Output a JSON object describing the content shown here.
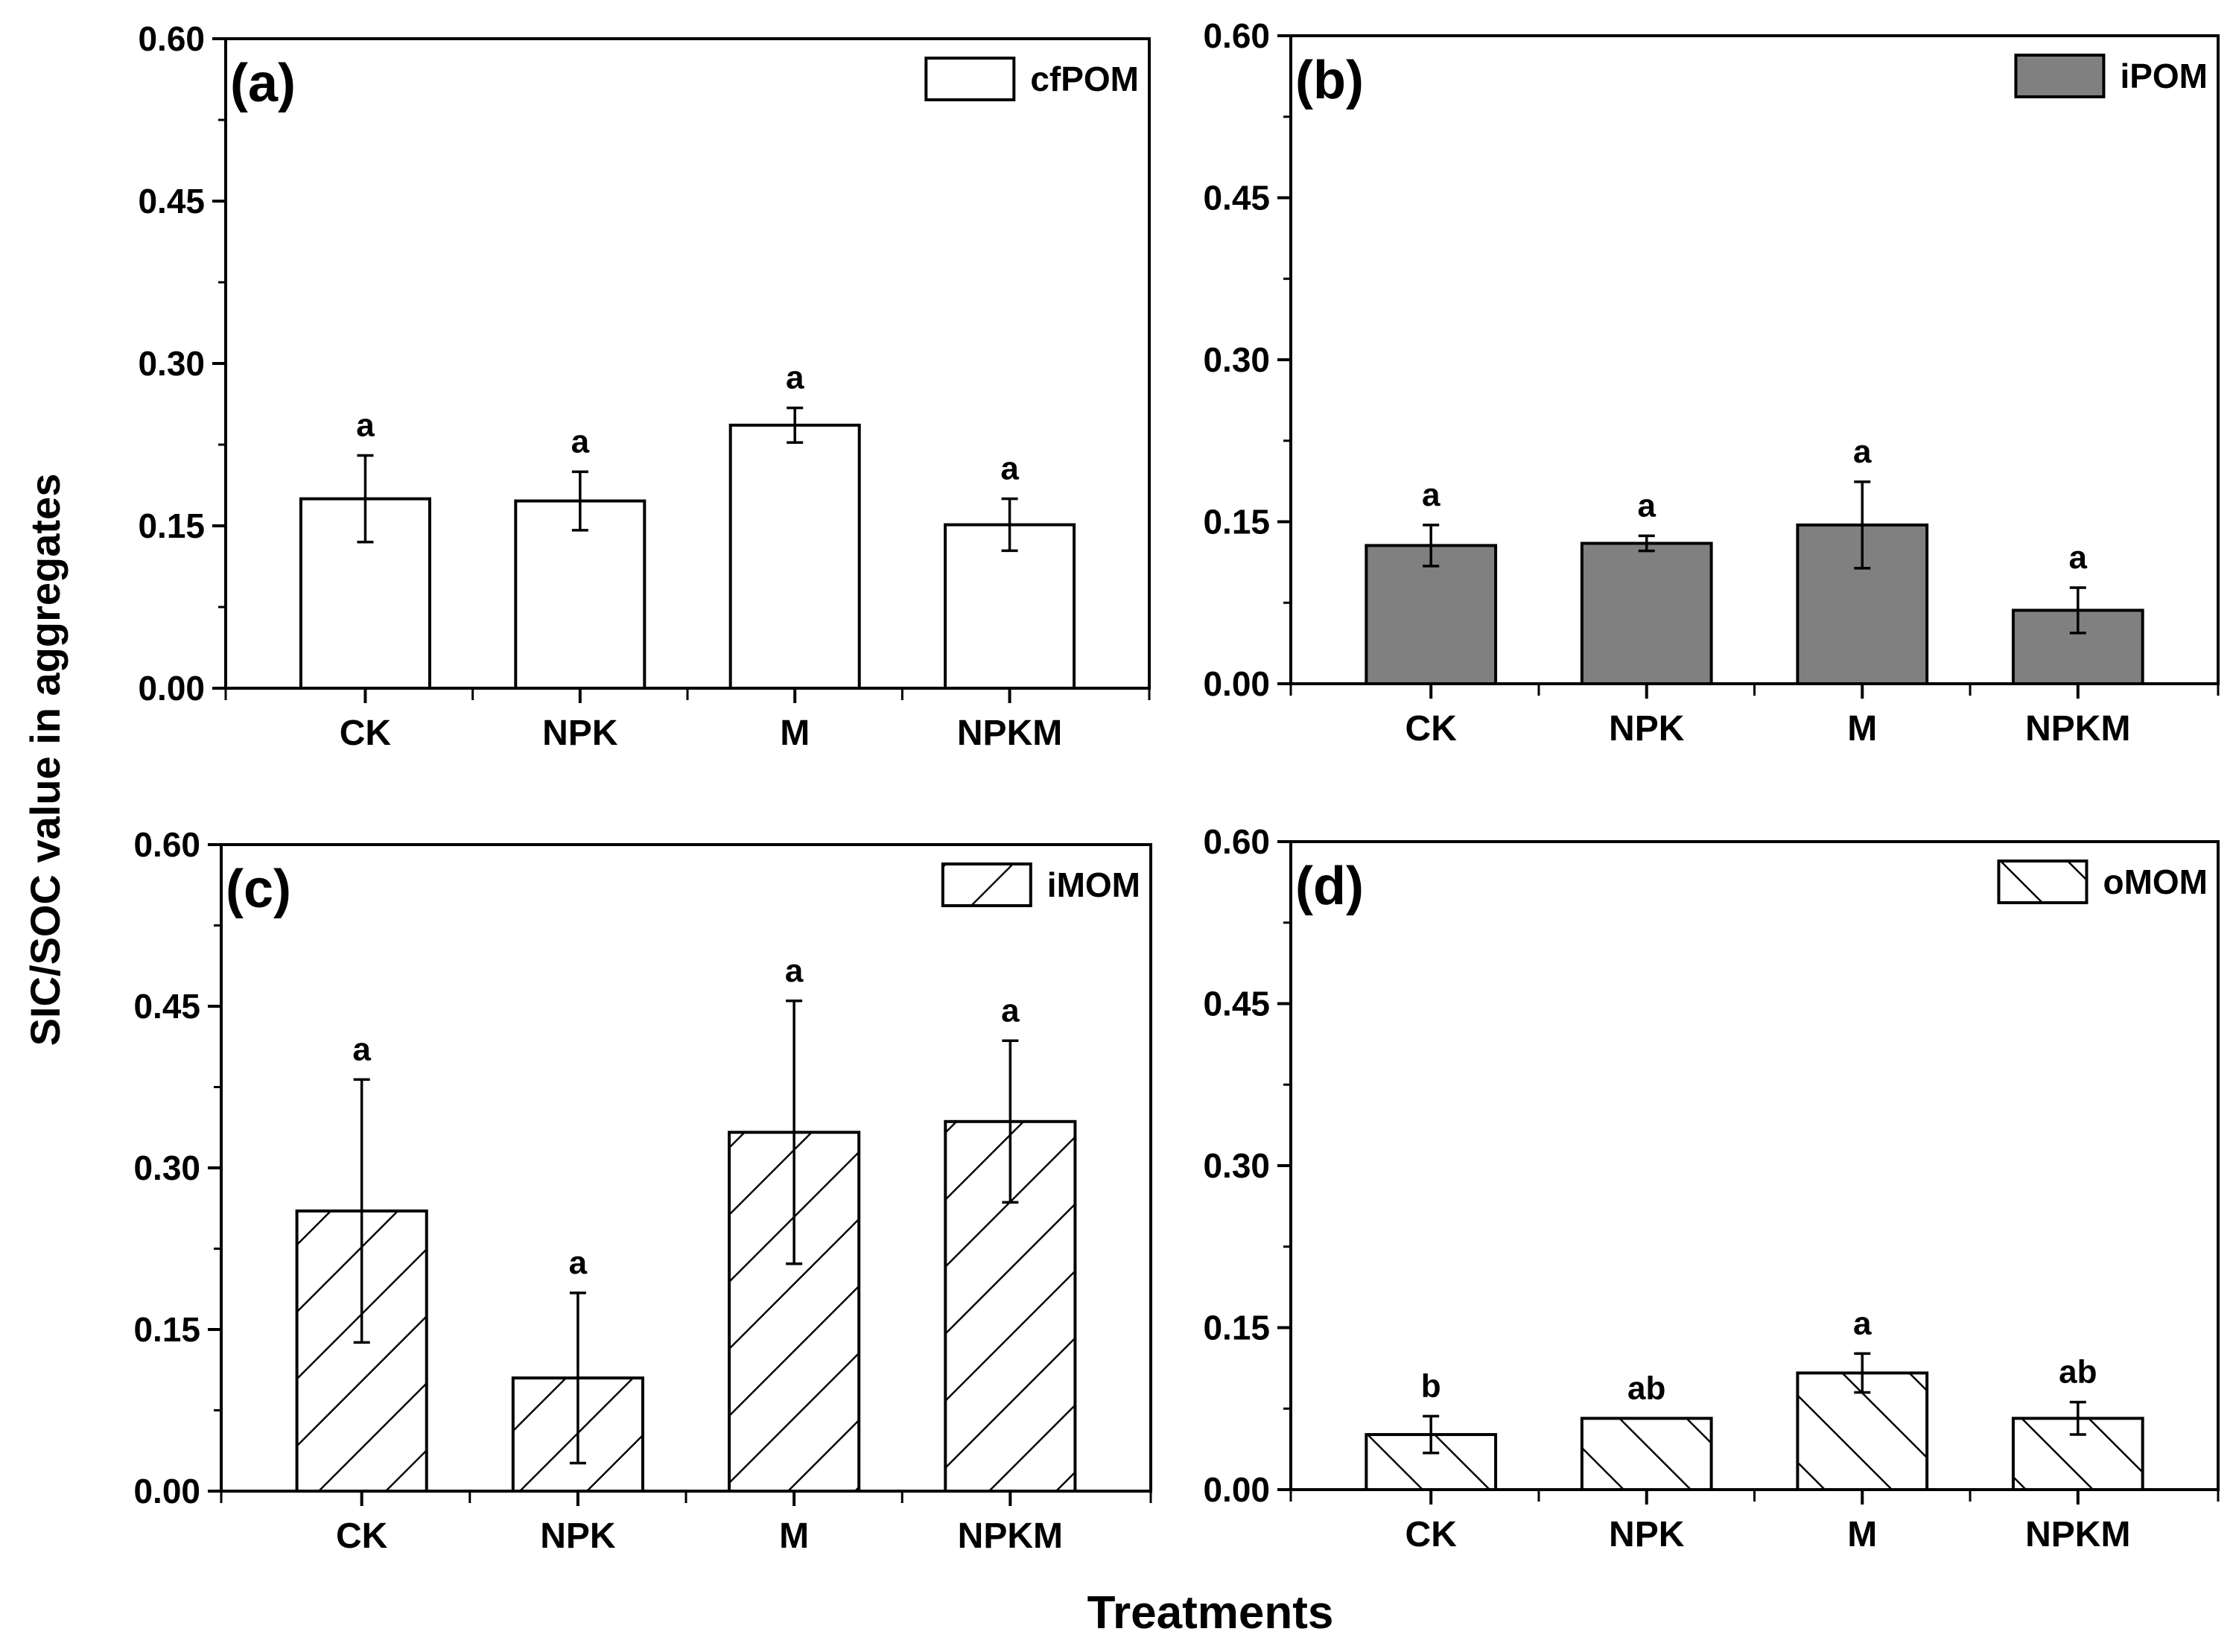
{
  "chart_data": {
    "type": "bar",
    "ylabel": "SIC/SOC value in aggregates",
    "xlabel": "Treatments",
    "ylim": [
      0,
      0.6
    ],
    "yticks": [
      "0.00",
      "0.15",
      "0.30",
      "0.45",
      "0.60"
    ],
    "categories": [
      "CK",
      "NPK",
      "M",
      "NPKM"
    ],
    "colors": {
      "axis": "#000000",
      "ipom_fill": "#808080",
      "white_fill": "#ffffff"
    },
    "panels": [
      {
        "panel_label": "(a)",
        "legend": "cfPOM",
        "fill": "white",
        "values": [
          0.175,
          0.173,
          0.243,
          0.151
        ],
        "errors": [
          0.04,
          0.027,
          0.016,
          0.024
        ],
        "significance": [
          "a",
          "a",
          "a",
          "a"
        ]
      },
      {
        "panel_label": "(b)",
        "legend": "iPOM",
        "fill": "gray",
        "values": [
          0.128,
          0.13,
          0.147,
          0.068
        ],
        "errors": [
          0.019,
          0.007,
          0.04,
          0.021
        ],
        "significance": [
          "a",
          "a",
          "a",
          "a"
        ]
      },
      {
        "panel_label": "(c)",
        "legend": "iMOM",
        "fill": "hatch-forward",
        "values": [
          0.26,
          0.105,
          0.333,
          0.343
        ],
        "errors": [
          0.122,
          0.079,
          0.122,
          0.075
        ],
        "significance": [
          "a",
          "a",
          "a",
          "a"
        ]
      },
      {
        "panel_label": "(d)",
        "legend": "oMOM",
        "fill": "hatch-back",
        "values": [
          0.051,
          0.066,
          0.108,
          0.066
        ],
        "errors": [
          0.017,
          0.0,
          0.018,
          0.015
        ],
        "significance": [
          "b",
          "ab",
          "a",
          "ab"
        ]
      }
    ]
  }
}
